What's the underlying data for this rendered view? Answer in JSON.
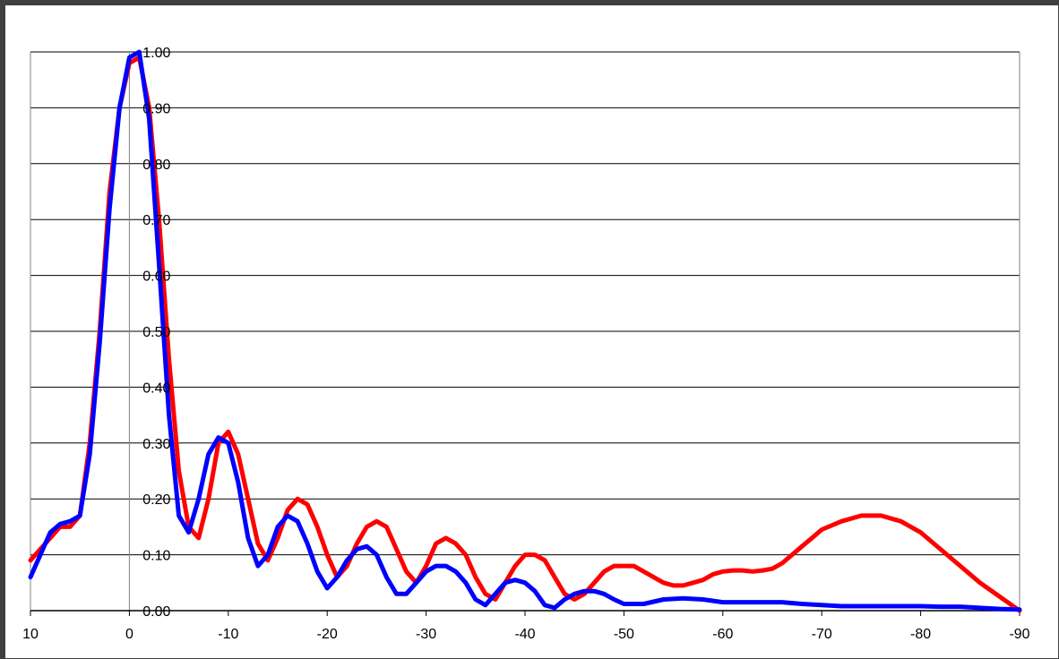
{
  "chart_data": {
    "type": "line",
    "title": "",
    "xlabel": "",
    "ylabel": "",
    "xlim": [
      10,
      -90
    ],
    "ylim": [
      0,
      1
    ],
    "grid": "horizontal",
    "legend": "none",
    "x_ticks": [
      "10",
      "0",
      "-10",
      "-20",
      "-30",
      "-40",
      "-50",
      "-60",
      "-70",
      "-80",
      "-90"
    ],
    "y_ticks": [
      "0.00",
      "0.10",
      "0.20",
      "0.30",
      "0.40",
      "0.50",
      "0.60",
      "0.70",
      "0.80",
      "0.90",
      "1.00"
    ],
    "series": [
      {
        "color": "#ff0000",
        "x": [
          10,
          8,
          7,
          6,
          5,
          4,
          3,
          2,
          1,
          0,
          -1,
          -2,
          -3,
          -4,
          -5,
          -6,
          -7,
          -8,
          -9,
          -10,
          -11,
          -12,
          -13,
          -14,
          -15,
          -16,
          -17,
          -18,
          -19,
          -20,
          -21,
          -22,
          -23,
          -24,
          -25,
          -26,
          -27,
          -28,
          -29,
          -30,
          -31,
          -32,
          -33,
          -34,
          -35,
          -36,
          -37,
          -38,
          -39,
          -40,
          -41,
          -42,
          -43,
          -44,
          -45,
          -46,
          -47,
          -48,
          -49,
          -50,
          -51,
          -52,
          -53,
          -54,
          -55,
          -56,
          -57,
          -58,
          -59,
          -60,
          -61,
          -62,
          -63,
          -64,
          -65,
          -66,
          -67,
          -68,
          -69,
          -70,
          -72,
          -74,
          -76,
          -78,
          -80,
          -82,
          -84,
          -86,
          -88,
          -90
        ],
        "y": [
          0.09,
          0.13,
          0.15,
          0.15,
          0.17,
          0.3,
          0.5,
          0.75,
          0.9,
          0.98,
          0.99,
          0.9,
          0.7,
          0.45,
          0.25,
          0.15,
          0.13,
          0.2,
          0.3,
          0.32,
          0.28,
          0.2,
          0.12,
          0.09,
          0.13,
          0.18,
          0.2,
          0.19,
          0.15,
          0.1,
          0.06,
          0.08,
          0.12,
          0.15,
          0.16,
          0.15,
          0.11,
          0.07,
          0.05,
          0.08,
          0.12,
          0.13,
          0.12,
          0.1,
          0.06,
          0.03,
          0.02,
          0.05,
          0.08,
          0.1,
          0.1,
          0.09,
          0.06,
          0.03,
          0.02,
          0.03,
          0.05,
          0.07,
          0.08,
          0.08,
          0.08,
          0.07,
          0.06,
          0.05,
          0.045,
          0.045,
          0.05,
          0.055,
          0.065,
          0.07,
          0.072,
          0.072,
          0.07,
          0.072,
          0.075,
          0.085,
          0.1,
          0.115,
          0.13,
          0.145,
          0.16,
          0.17,
          0.17,
          0.16,
          0.14,
          0.11,
          0.08,
          0.05,
          0.025,
          0.0
        ]
      },
      {
        "color": "#0000ff",
        "x": [
          10,
          8,
          7,
          6,
          5,
          4,
          3,
          2,
          1,
          0,
          -1,
          -2,
          -3,
          -4,
          -5,
          -6,
          -7,
          -8,
          -9,
          -10,
          -11,
          -12,
          -13,
          -14,
          -15,
          -16,
          -17,
          -18,
          -19,
          -20,
          -21,
          -22,
          -23,
          -24,
          -25,
          -26,
          -27,
          -28,
          -29,
          -30,
          -31,
          -32,
          -33,
          -34,
          -35,
          -36,
          -37,
          -38,
          -39,
          -40,
          -41,
          -42,
          -43,
          -44,
          -45,
          -46,
          -47,
          -48,
          -49,
          -50,
          -52,
          -54,
          -56,
          -58,
          -60,
          -62,
          -64,
          -66,
          -68,
          -70,
          -72,
          -74,
          -76,
          -78,
          -80,
          -82,
          -84,
          -86,
          -88,
          -90
        ],
        "y": [
          0.06,
          0.14,
          0.155,
          0.16,
          0.17,
          0.28,
          0.48,
          0.72,
          0.9,
          0.99,
          1.0,
          0.88,
          0.62,
          0.35,
          0.17,
          0.14,
          0.2,
          0.28,
          0.31,
          0.3,
          0.23,
          0.13,
          0.08,
          0.1,
          0.15,
          0.17,
          0.16,
          0.12,
          0.07,
          0.04,
          0.06,
          0.09,
          0.11,
          0.115,
          0.1,
          0.06,
          0.03,
          0.03,
          0.05,
          0.07,
          0.08,
          0.08,
          0.07,
          0.05,
          0.02,
          0.01,
          0.03,
          0.05,
          0.055,
          0.05,
          0.035,
          0.01,
          0.005,
          0.02,
          0.03,
          0.035,
          0.035,
          0.03,
          0.02,
          0.012,
          0.012,
          0.02,
          0.022,
          0.02,
          0.015,
          0.015,
          0.015,
          0.015,
          0.012,
          0.01,
          0.008,
          0.008,
          0.008,
          0.008,
          0.008,
          0.007,
          0.007,
          0.005,
          0.003,
          0.002
        ]
      }
    ]
  }
}
